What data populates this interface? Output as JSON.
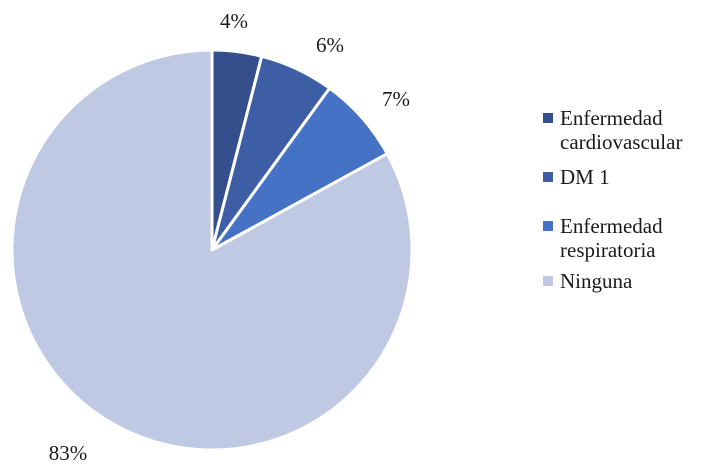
{
  "chart_data": {
    "type": "pie",
    "title": "",
    "slices": [
      {
        "name": "Enfermedad cardiovascular",
        "value": 4,
        "label": "4%",
        "color": "#354f8d"
      },
      {
        "name": "DM 1",
        "value": 6,
        "label": "6%",
        "color": "#3d5ea5"
      },
      {
        "name": "Enfermedad respiratoria",
        "value": 7,
        "label": "7%",
        "color": "#4572c4"
      },
      {
        "name": "Ninguna",
        "value": 83,
        "label": "83%",
        "color": "#c0c9e3"
      }
    ],
    "start_angle": "12 o'clock",
    "direction": "clockwise",
    "legend_position": "right"
  },
  "legend": {
    "items": [
      {
        "line1": "Enfermedad",
        "line2": "cardiovascular"
      },
      {
        "line1": "DM 1",
        "line2": ""
      },
      {
        "line1": "Enfermedad",
        "line2": "respiratoria"
      },
      {
        "line1": "Ninguna",
        "line2": ""
      }
    ]
  }
}
